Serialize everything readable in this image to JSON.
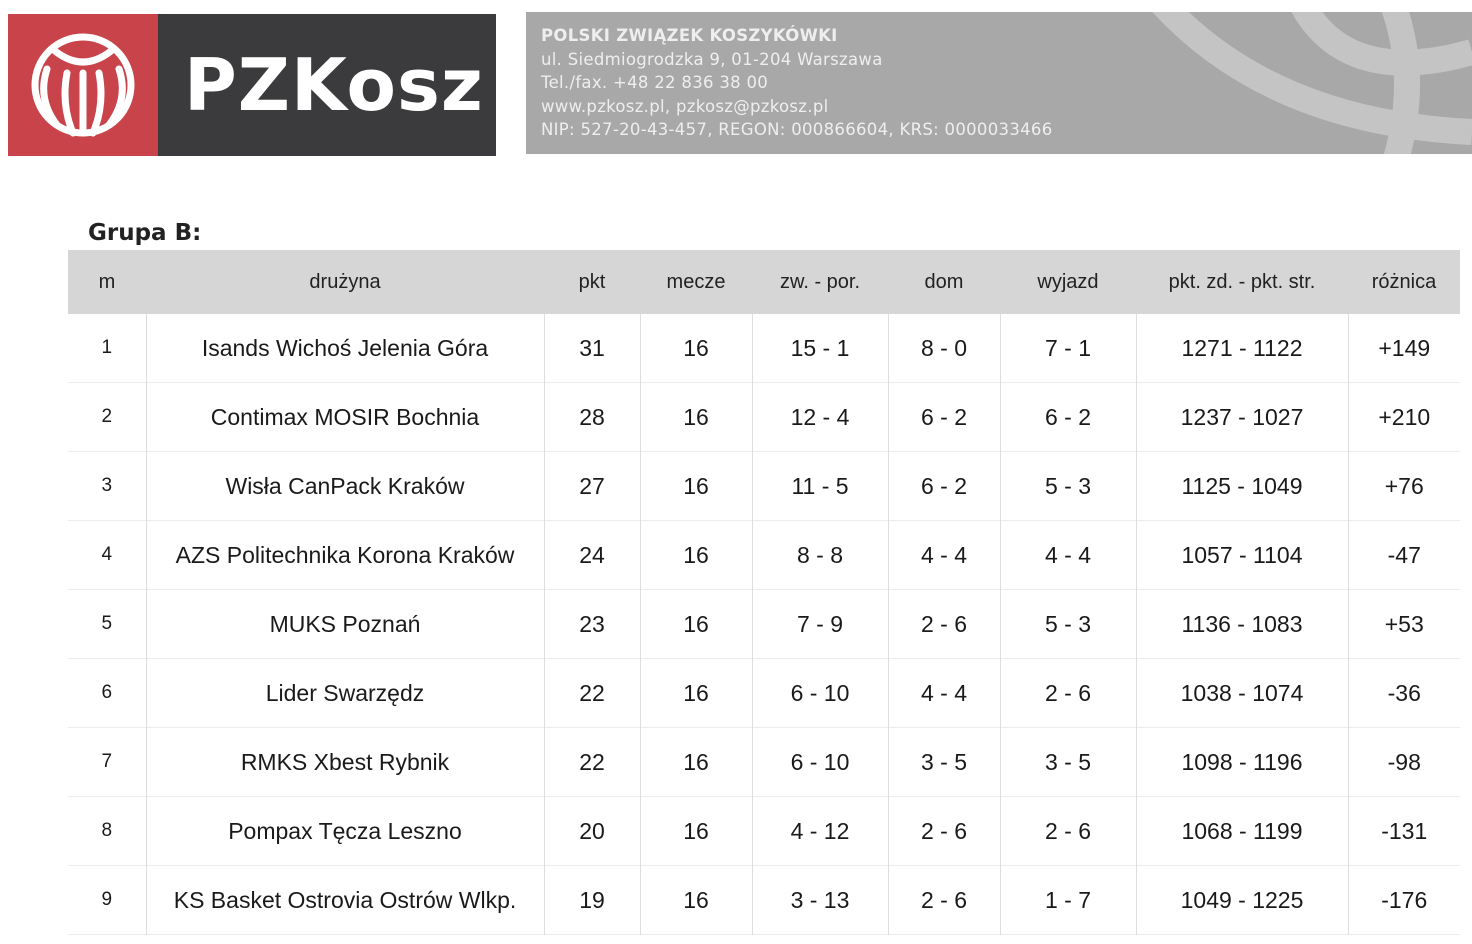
{
  "header": {
    "logo_text": "PZKosz",
    "org_lines": [
      "POLSKI ZWIĄZEK KOSZYKÓWKI",
      "ul. Siedmiogrodzka 9, 01-204 Warszawa",
      "Tel./fax. +48 22 836 38 00",
      "www.pzkosz.pl, pzkosz@pzkosz.pl",
      "NIP: 527-20-43-457, REGON: 000866604, KRS: 0000033466"
    ],
    "colors": {
      "logo_red": "#c8444a",
      "logo_dark": "#3b3b3d",
      "banner_gray": "#a8a8a8"
    }
  },
  "group_title": "Grupa B:",
  "table": {
    "columns": [
      "m",
      "drużyna",
      "pkt",
      "mecze",
      "zw. - por.",
      "dom",
      "wyjazd",
      "pkt. zd. - pkt. str.",
      "różnica"
    ],
    "rows": [
      [
        "1",
        "Isands Wichoś Jelenia Góra",
        "31",
        "16",
        "15 - 1",
        "8 - 0",
        "7 - 1",
        "1271 - 1122",
        "+149"
      ],
      [
        "2",
        "Contimax MOSIR Bochnia",
        "28",
        "16",
        "12 - 4",
        "6 - 2",
        "6 - 2",
        "1237 - 1027",
        "+210"
      ],
      [
        "3",
        "Wisła CanPack Kraków",
        "27",
        "16",
        "11 - 5",
        "6 - 2",
        "5 - 3",
        "1125 - 1049",
        "+76"
      ],
      [
        "4",
        "AZS Politechnika Korona Kraków",
        "24",
        "16",
        "8 - 8",
        "4 - 4",
        "4 - 4",
        "1057 - 1104",
        "-47"
      ],
      [
        "5",
        "MUKS Poznań",
        "23",
        "16",
        "7 - 9",
        "2 - 6",
        "5 - 3",
        "1136 - 1083",
        "+53"
      ],
      [
        "6",
        "Lider Swarzędz",
        "22",
        "16",
        "6 - 10",
        "4 - 4",
        "2 - 6",
        "1038 - 1074",
        "-36"
      ],
      [
        "7",
        "RMKS Xbest Rybnik",
        "22",
        "16",
        "6 - 10",
        "3 - 5",
        "3 - 5",
        "1098 - 1196",
        "-98"
      ],
      [
        "8",
        "Pompax Tęcza Leszno",
        "20",
        "16",
        "4 - 12",
        "2 - 6",
        "2 - 6",
        "1068 - 1199",
        "-131"
      ],
      [
        "9",
        "KS Basket Ostrovia Ostrów Wlkp.",
        "19",
        "16",
        "3 - 13",
        "2 - 6",
        "1 - 7",
        "1049 - 1225",
        "-176"
      ]
    ]
  }
}
